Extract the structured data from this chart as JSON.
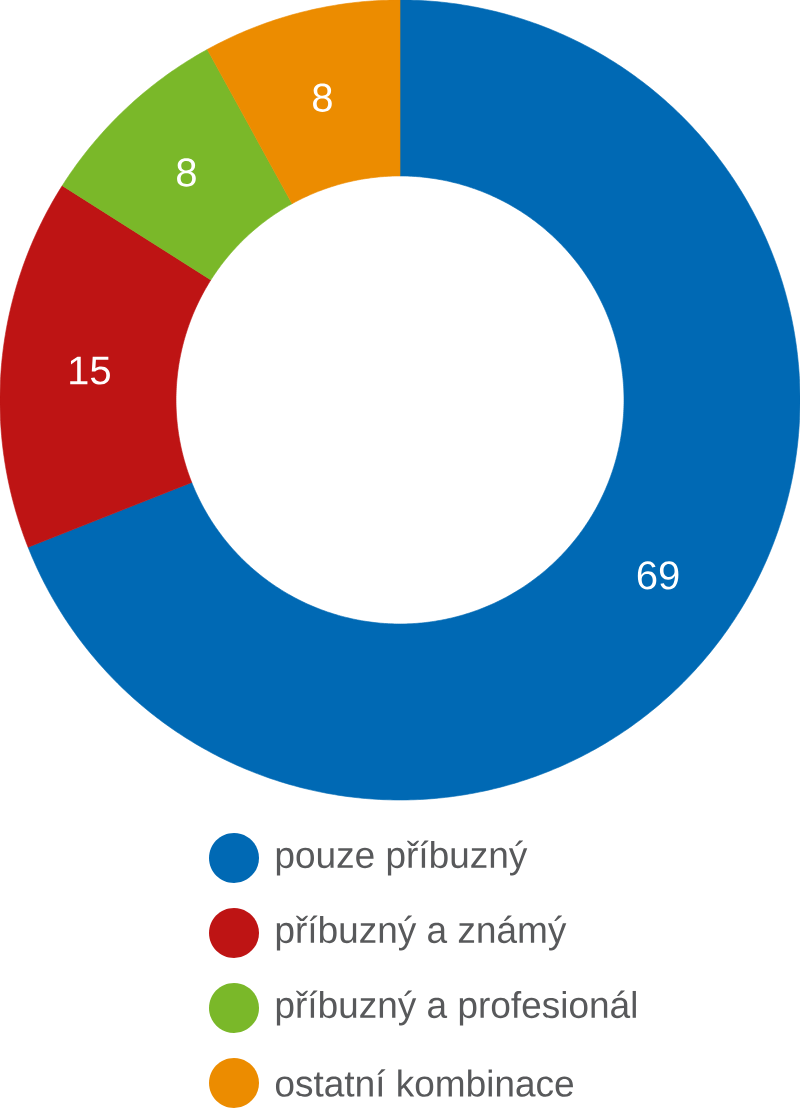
{
  "chart_data": {
    "type": "donut",
    "categories": [
      "pouze příbuzný",
      "příbuzný a známý",
      "příbuzný a profesionál",
      "ostatní kombinace"
    ],
    "values": [
      69,
      15,
      8,
      8
    ],
    "colors": [
      "#0069b4",
      "#be1414",
      "#7ab829",
      "#ec8c00"
    ],
    "data_labels": true,
    "legend": "bottom"
  }
}
